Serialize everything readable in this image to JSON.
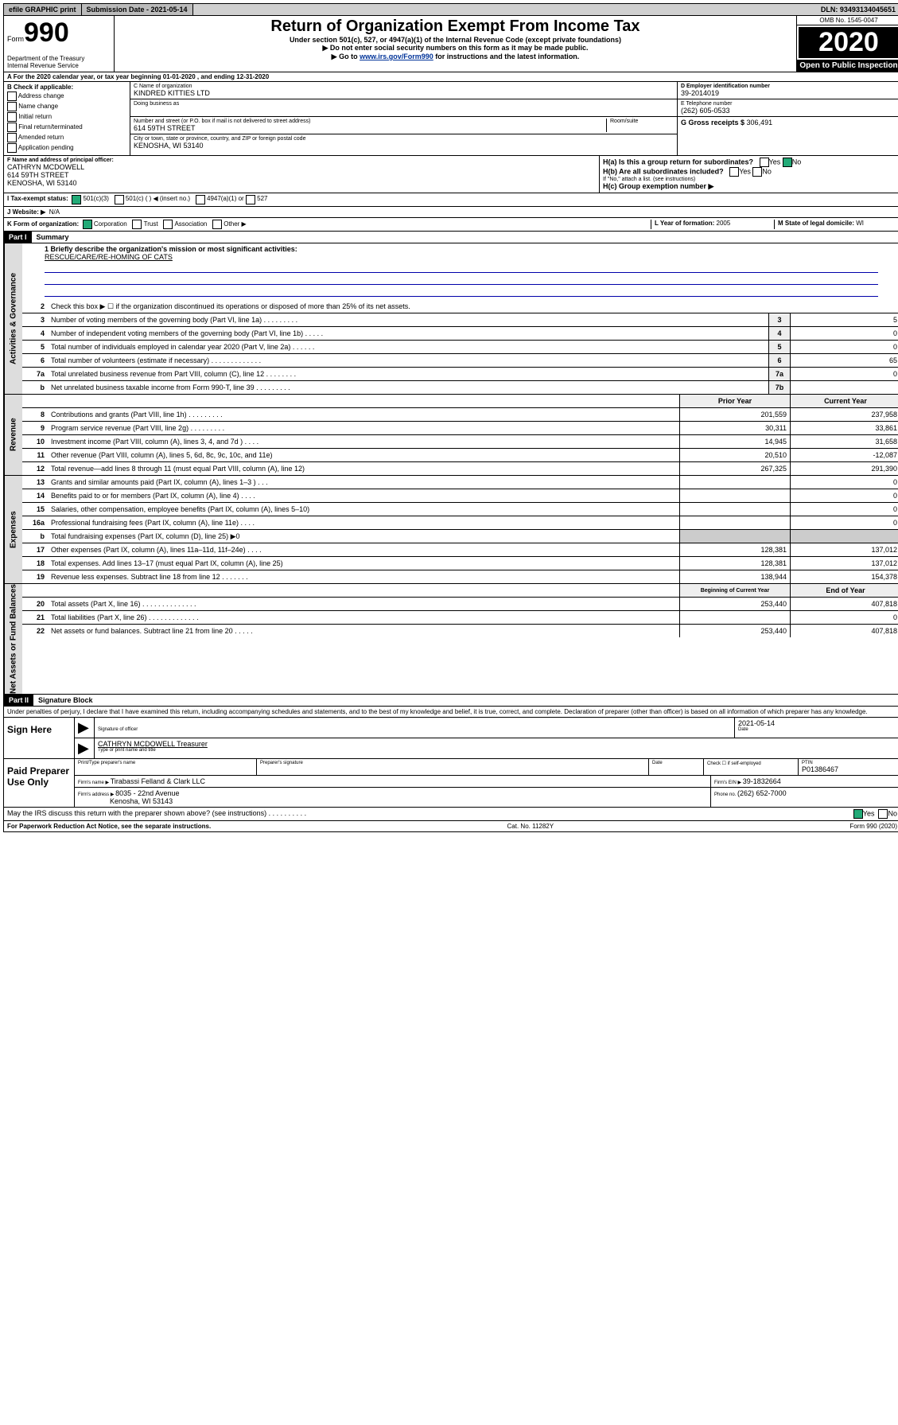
{
  "topbar": {
    "efile": "efile GRAPHIC print",
    "subdate_label": "Submission Date - 2021-05-14",
    "dln": "DLN: 93493134045651"
  },
  "header": {
    "form_word": "Form",
    "form_no": "990",
    "title": "Return of Organization Exempt From Income Tax",
    "sub1": "Under section 501(c), 527, or 4947(a)(1) of the Internal Revenue Code (except private foundations)",
    "sub2": "▶ Do not enter social security numbers on this form as it may be made public.",
    "sub3_pre": "▶ Go to ",
    "sub3_link": "www.irs.gov/Form990",
    "sub3_post": " for instructions and the latest information.",
    "omb": "OMB No. 1545-0047",
    "year": "2020",
    "open": "Open to Public Inspection",
    "dept1": "Department of the Treasury",
    "dept2": "Internal Revenue Service"
  },
  "row_a": "A For the 2020 calendar year, or tax year beginning 01-01-2020   , and ending 12-31-2020",
  "col_b": {
    "hdr": "B Check if applicable:",
    "items": [
      "Address change",
      "Name change",
      "Initial return",
      "Final return/terminated",
      "Amended return",
      "Application pending"
    ]
  },
  "col_c": {
    "name_lbl": "C Name of organization",
    "name": "KINDRED KITTIES LTD",
    "dba_lbl": "Doing business as",
    "addr_lbl": "Number and street (or P.O. box if mail is not delivered to street address)",
    "room_lbl": "Room/suite",
    "addr": "614 59TH STREET",
    "city_lbl": "City or town, state or province, country, and ZIP or foreign postal code",
    "city": "KENOSHA, WI  53140"
  },
  "col_de": {
    "d_lbl": "D Employer identification number",
    "d_val": "39-2014019",
    "e_lbl": "E Telephone number",
    "e_val": "(262) 605-0533",
    "g_lbl": "G Gross receipts $ ",
    "g_val": "306,491"
  },
  "col_f": {
    "lbl": "F  Name and address of principal officer:",
    "name": "CATHRYN MCDOWELL",
    "addr1": "614 59TH STREET",
    "addr2": "KENOSHA, WI  53140"
  },
  "col_h": {
    "ha": "H(a)  Is this a group return for subordinates?",
    "hb": "H(b)  Are all subordinates included?",
    "hc": "H(c)  Group exemption number ▶",
    "yes": "Yes",
    "no": "No",
    "attach": "If \"No,\" attach a list. (see instructions)"
  },
  "row_i": {
    "lbl": "I    Tax-exempt status:",
    "c3": "501(c)(3)",
    "c": "501(c) (  ) ◀ (insert no.)",
    "a1": "4947(a)(1) or",
    "527": "527"
  },
  "row_j": {
    "lbl": "J   Website: ▶",
    "val": "N/A"
  },
  "row_k": {
    "lbl": "K Form of organization:",
    "corp": "Corporation",
    "trust": "Trust",
    "assoc": "Association",
    "other": "Other ▶",
    "l_lbl": "L Year of formation: ",
    "l_val": "2005",
    "m_lbl": "M State of legal domicile: ",
    "m_val": "WI"
  },
  "part1": {
    "hdr": "Part I",
    "title": "Summary",
    "tab_gov": "Activities & Governance",
    "tab_rev": "Revenue",
    "tab_exp": "Expenses",
    "tab_net": "Net Assets or Fund Balances",
    "l1_lbl": "1  Briefly describe the organization's mission or most significant activities:",
    "l1_val": "RESCUE/CARE/RE-HOMING OF CATS",
    "l2": "Check this box ▶ ☐  if the organization discontinued its operations or disposed of more than 25% of its net assets.",
    "lines_gov": [
      {
        "n": "3",
        "d": "Number of voting members of the governing body (Part VI, line 1a)  .  .  .  .  .  .  .  .  .",
        "b": "3",
        "v": "5"
      },
      {
        "n": "4",
        "d": "Number of independent voting members of the governing body (Part VI, line 1b)  .  .  .  .  .",
        "b": "4",
        "v": "0"
      },
      {
        "n": "5",
        "d": "Total number of individuals employed in calendar year 2020 (Part V, line 2a)  .  .  .  .  .  .",
        "b": "5",
        "v": "0"
      },
      {
        "n": "6",
        "d": "Total number of volunteers (estimate if necessary)  .  .  .  .  .  .  .  .  .  .  .  .  .",
        "b": "6",
        "v": "65"
      },
      {
        "n": "7a",
        "d": "Total unrelated business revenue from Part VIII, column (C), line 12  .  .  .  .  .  .  .  .",
        "b": "7a",
        "v": "0"
      },
      {
        "n": "b",
        "d": "Net unrelated business taxable income from Form 990-T, line 39  .  .  .  .  .  .  .  .  .",
        "b": "7b",
        "v": ""
      }
    ],
    "prior_hdr": "Prior Year",
    "curr_hdr": "Current Year",
    "lines_rev": [
      {
        "n": "8",
        "d": "Contributions and grants (Part VIII, line 1h)  .  .  .  .  .  .  .  .  .",
        "p": "201,559",
        "c": "237,958"
      },
      {
        "n": "9",
        "d": "Program service revenue (Part VIII, line 2g)  .  .  .  .  .  .  .  .  .",
        "p": "30,311",
        "c": "33,861"
      },
      {
        "n": "10",
        "d": "Investment income (Part VIII, column (A), lines 3, 4, and 7d )  .  .  .  .",
        "p": "14,945",
        "c": "31,658"
      },
      {
        "n": "11",
        "d": "Other revenue (Part VIII, column (A), lines 5, 6d, 8c, 9c, 10c, and 11e)",
        "p": "20,510",
        "c": "-12,087"
      },
      {
        "n": "12",
        "d": "Total revenue—add lines 8 through 11 (must equal Part VIII, column (A), line 12)",
        "p": "267,325",
        "c": "291,390"
      }
    ],
    "lines_exp": [
      {
        "n": "13",
        "d": "Grants and similar amounts paid (Part IX, column (A), lines 1–3 )  .  .  .",
        "p": "",
        "c": "0"
      },
      {
        "n": "14",
        "d": "Benefits paid to or for members (Part IX, column (A), line 4)  .  .  .  .",
        "p": "",
        "c": "0"
      },
      {
        "n": "15",
        "d": "Salaries, other compensation, employee benefits (Part IX, column (A), lines 5–10)",
        "p": "",
        "c": "0"
      },
      {
        "n": "16a",
        "d": "Professional fundraising fees (Part IX, column (A), line 11e)  .  .  .  .",
        "p": "",
        "c": "0"
      },
      {
        "n": "b",
        "d": "Total fundraising expenses (Part IX, column (D), line 25) ▶0",
        "p": "__shade__",
        "c": "__shade__"
      },
      {
        "n": "17",
        "d": "Other expenses (Part IX, column (A), lines 11a–11d, 11f–24e)  .  .  .  .",
        "p": "128,381",
        "c": "137,012"
      },
      {
        "n": "18",
        "d": "Total expenses. Add lines 13–17 (must equal Part IX, column (A), line 25)",
        "p": "128,381",
        "c": "137,012"
      },
      {
        "n": "19",
        "d": "Revenue less expenses. Subtract line 18 from line 12  .  .  .  .  .  .  .",
        "p": "138,944",
        "c": "154,378"
      }
    ],
    "beg_hdr": "Beginning of Current Year",
    "end_hdr": "End of Year",
    "lines_net": [
      {
        "n": "20",
        "d": "Total assets (Part X, line 16)  .  .  .  .  .  .  .  .  .  .  .  .  .  .",
        "p": "253,440",
        "c": "407,818"
      },
      {
        "n": "21",
        "d": "Total liabilities (Part X, line 26)  .  .  .  .  .  .  .  .  .  .  .  .  .",
        "p": "",
        "c": "0"
      },
      {
        "n": "22",
        "d": "Net assets or fund balances. Subtract line 21 from line 20  .  .  .  .  .",
        "p": "253,440",
        "c": "407,818"
      }
    ]
  },
  "part2": {
    "hdr": "Part II",
    "title": "Signature Block",
    "perjury": "Under penalties of perjury, I declare that I have examined this return, including accompanying schedules and statements, and to the best of my knowledge and belief, it is true, correct, and complete. Declaration of preparer (other than officer) is based on all information of which preparer has any knowledge.",
    "sign_here": "Sign Here",
    "sig_officer": "Signature of officer",
    "sig_date": "2021-05-14",
    "date_lbl": "Date",
    "officer_name": "CATHRYN MCDOWELL  Treasurer",
    "type_name": "Type or print name and title",
    "paid_prep": "Paid Preparer Use Only",
    "prep_name_lbl": "Print/Type preparer's name",
    "prep_sig_lbl": "Preparer's signature",
    "prep_date_lbl": "Date",
    "check_self": "Check ☐ if self-employed",
    "ptin_lbl": "PTIN",
    "ptin": "P01386467",
    "firm_name_lbl": "Firm's name    ▶ ",
    "firm_name": "Tirabassi Felland & Clark LLC",
    "firm_ein_lbl": "Firm's EIN ▶ ",
    "firm_ein": "39-1832664",
    "firm_addr_lbl": "Firm's address ▶ ",
    "firm_addr1": "8035 - 22nd Avenue",
    "firm_addr2": "Kenosha, WI  53143",
    "firm_phone_lbl": "Phone no. ",
    "firm_phone": "(262) 652-7000",
    "discuss": "May the IRS discuss this return with the preparer shown above? (see instructions)    .  .  .  .  .  .  .  .  .  .",
    "yes": "Yes",
    "no": "No"
  },
  "footer": {
    "pra": "For Paperwork Reduction Act Notice, see the separate instructions.",
    "cat": "Cat. No. 11282Y",
    "form": "Form 990 (2020)"
  }
}
